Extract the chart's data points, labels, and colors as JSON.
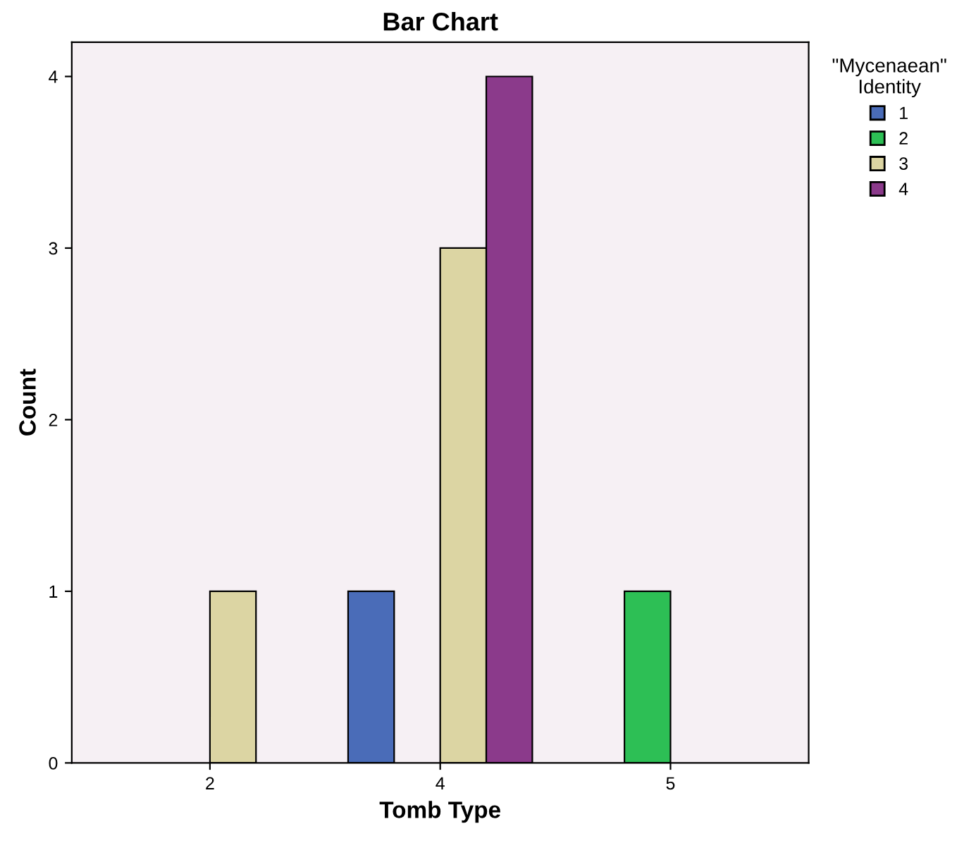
{
  "chart_data": {
    "type": "bar",
    "title": "Bar Chart",
    "xlabel": "Tomb Type",
    "ylabel": "Count",
    "legend_title": "\"Mycenaean\"\nIdentity",
    "categories": [
      "2",
      "4",
      "5"
    ],
    "series": [
      {
        "name": "1",
        "color": "#4a6cb8",
        "values": [
          null,
          1,
          null
        ]
      },
      {
        "name": "2",
        "color": "#2dbf55",
        "values": [
          null,
          null,
          1
        ]
      },
      {
        "name": "3",
        "color": "#dcd5a3",
        "values": [
          1,
          3,
          null
        ]
      },
      {
        "name": "4",
        "color": "#8b3a8b",
        "values": [
          null,
          4,
          null
        ]
      }
    ],
    "ylim": [
      0,
      4.2
    ],
    "yticks": [
      0,
      1,
      2,
      3,
      4
    ],
    "grid": false,
    "legend": "top right"
  }
}
